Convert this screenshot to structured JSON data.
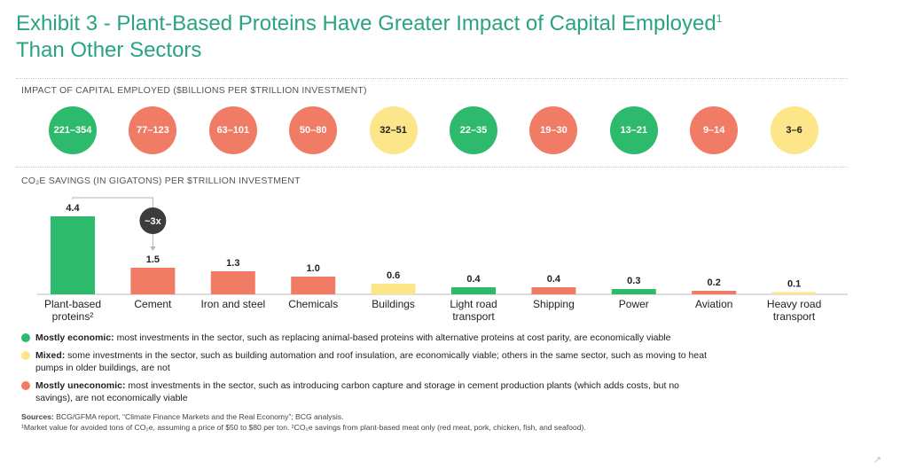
{
  "title": {
    "line1": "Exhibit 3 - Plant-Based Proteins Have Greater Impact of Capital Employed",
    "sup": "1",
    "line2": "Than Other Sectors"
  },
  "colors": {
    "green": "#2dba6c",
    "red": "#f07c65",
    "yellow": "#fde58a",
    "title": "#2aa382"
  },
  "capital_section_label": "IMPACT OF CAPITAL EMPLOYED ($BILLIONS PER $TRILLION INVESTMENT)",
  "capital_bubbles": [
    {
      "value": "221–354",
      "category": "green"
    },
    {
      "value": "77–123",
      "category": "red"
    },
    {
      "value": "63–101",
      "category": "red"
    },
    {
      "value": "50–80",
      "category": "red"
    },
    {
      "value": "32–51",
      "category": "yellow"
    },
    {
      "value": "22–35",
      "category": "green"
    },
    {
      "value": "19–30",
      "category": "red"
    },
    {
      "value": "13–21",
      "category": "green"
    },
    {
      "value": "9–14",
      "category": "red"
    },
    {
      "value": "3–6",
      "category": "yellow"
    }
  ],
  "co2_section_label": "CO₂E SAVINGS (IN GIGATONS) PER $TRILLION INVESTMENT",
  "chart_data": {
    "type": "bar",
    "categories": [
      [
        "Plant-based",
        "proteins²"
      ],
      [
        "Cement"
      ],
      [
        "Iron and steel"
      ],
      [
        "Chemicals"
      ],
      [
        "Buildings"
      ],
      [
        "Light road",
        "transport"
      ],
      [
        "Shipping"
      ],
      [
        "Power"
      ],
      [
        "Aviation"
      ],
      [
        "Heavy road",
        "transport"
      ]
    ],
    "values": [
      4.4,
      1.5,
      1.3,
      1.0,
      0.6,
      0.4,
      0.4,
      0.3,
      0.2,
      0.1
    ],
    "value_labels": [
      "4.4",
      "1.5",
      "1.3",
      "1.0",
      "0.6",
      "0.4",
      "0.4",
      "0.3",
      "0.2",
      "0.1"
    ],
    "bar_categories": [
      "green",
      "red",
      "red",
      "red",
      "yellow",
      "green",
      "red",
      "green",
      "red",
      "yellow"
    ],
    "ylim": [
      0,
      4.4
    ],
    "annotation": {
      "text": "~3x",
      "from": 0,
      "to": 1
    }
  },
  "legend": [
    {
      "category": "green",
      "bold": "Mostly economic:",
      "text": " most investments in the sector, such as replacing animal-based proteins with alternative proteins at cost parity, are economically viable"
    },
    {
      "category": "yellow",
      "bold": "Mixed:",
      "text": " some investments in the sector, such as building automation and roof insulation, are economically viable; others in the same sector, such as moving to heat pumps in older buildings, are not"
    },
    {
      "category": "red",
      "bold": "Mostly uneconomic:",
      "text": " most investments in the sector, such as introducing carbon capture and storage in cement production plants (which adds costs, but no savings), are not economically viable"
    }
  ],
  "sources": {
    "bold": "Sources:",
    "text": " BCG/GFMA report, “Climate Finance Markets and the Real Economy”; BCG analysis.",
    "footnote": "¹Market value for avoided tons of CO₂e, assuming a price of $50 to $80 per ton. ²CO₂e savings from plant-based meat only (red meat, pork, chicken, fish, and seafood)."
  },
  "corner_icon": "expand-arrow-icon"
}
